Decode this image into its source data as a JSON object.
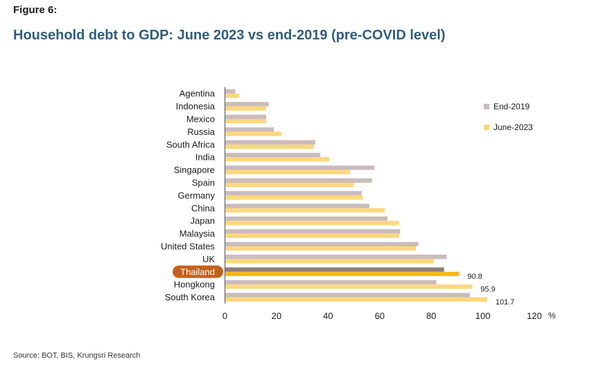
{
  "figure_label": "Figure 6:",
  "title": "Household debt to GDP: June 2023 vs end-2019 (pre-COVID level)",
  "source": "Source: BOT, BIS, Krungsri Research",
  "colors": {
    "end2019": "#cbbcbc",
    "june2023": "#fcd87c",
    "end2019_highlight": "#8c7f7f",
    "june2023_highlight": "#f6b91a",
    "highlight_pill": "#c5601c",
    "axis": "#555555"
  },
  "chart_data": {
    "type": "bar",
    "orientation": "horizontal",
    "title": "",
    "xlabel": "",
    "ylabel": "",
    "unit_label": "%",
    "xlim": [
      0,
      120
    ],
    "xticks": [
      0,
      20,
      40,
      60,
      80,
      100,
      120
    ],
    "grid": false,
    "legend_position": "right",
    "highlight_category": "Thailand",
    "categories": [
      "Agentina",
      "Indonesia",
      "Mexico",
      "Russia",
      "South Africa",
      "India",
      "Singapore",
      "Spain",
      "Germany",
      "China",
      "Japan",
      "Malaysia",
      "United States",
      "UK",
      "Thailand",
      "Hongkong",
      "South Korea"
    ],
    "series": [
      {
        "name": "End-2019",
        "values": [
          4,
          17,
          16,
          19,
          35,
          37,
          58,
          57,
          53,
          56,
          63,
          68,
          75,
          86,
          85,
          82,
          95
        ]
      },
      {
        "name": "June-2023",
        "values": [
          5.5,
          16,
          16,
          22,
          34.5,
          40.5,
          48.5,
          50,
          53.5,
          62,
          67.5,
          67.5,
          74,
          81,
          90.8,
          95.9,
          101.7
        ]
      }
    ],
    "data_labels": [
      {
        "category": "Thailand",
        "series": "June-2023",
        "text": "90.8"
      },
      {
        "category": "Hongkong",
        "series": "June-2023",
        "text": "95.9"
      },
      {
        "category": "South Korea",
        "series": "June-2023",
        "text": "101.7"
      }
    ]
  }
}
